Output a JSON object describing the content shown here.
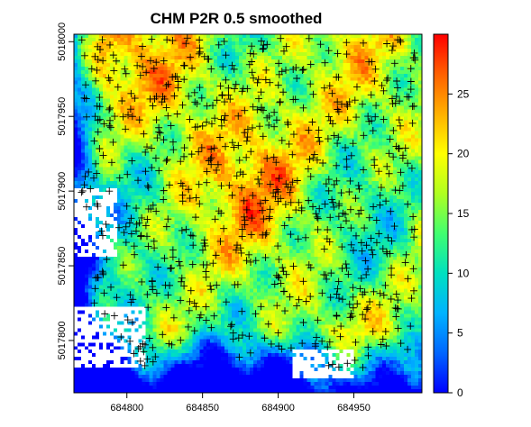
{
  "chart_data": {
    "type": "heatmap",
    "title": "CHM P2R 0.5 smoothed",
    "xlabel": "",
    "ylabel": "",
    "xlim": [
      684765,
      684995
    ],
    "ylim": [
      5017765,
      5018005
    ],
    "x_ticks": [
      684800,
      684850,
      684900,
      684950
    ],
    "y_ticks": [
      5017800,
      5017850,
      5017900,
      5017950,
      5018000
    ],
    "x_tick_labels": [
      "684800",
      "684850",
      "684900",
      "684950"
    ],
    "y_tick_labels": [
      "5017800",
      "5017850",
      "5017900",
      "5017950",
      "5018000"
    ],
    "colorbar": {
      "min": 0,
      "max": 30,
      "ticks": [
        0,
        5,
        10,
        15,
        20,
        25
      ],
      "tick_labels": [
        "0",
        "5",
        "10",
        "15",
        "20",
        "25"
      ],
      "palette": [
        "#0000ff",
        "#0066ff",
        "#00b3ff",
        "#00e0c0",
        "#40ff70",
        "#b0ff20",
        "#ffff00",
        "#ffb000",
        "#ff6000",
        "#ff0000"
      ]
    },
    "description_values": {
      "no_data_color": "#ffffff",
      "tree_top_marker": "+",
      "tree_top_marker_color": "#000000"
    }
  }
}
